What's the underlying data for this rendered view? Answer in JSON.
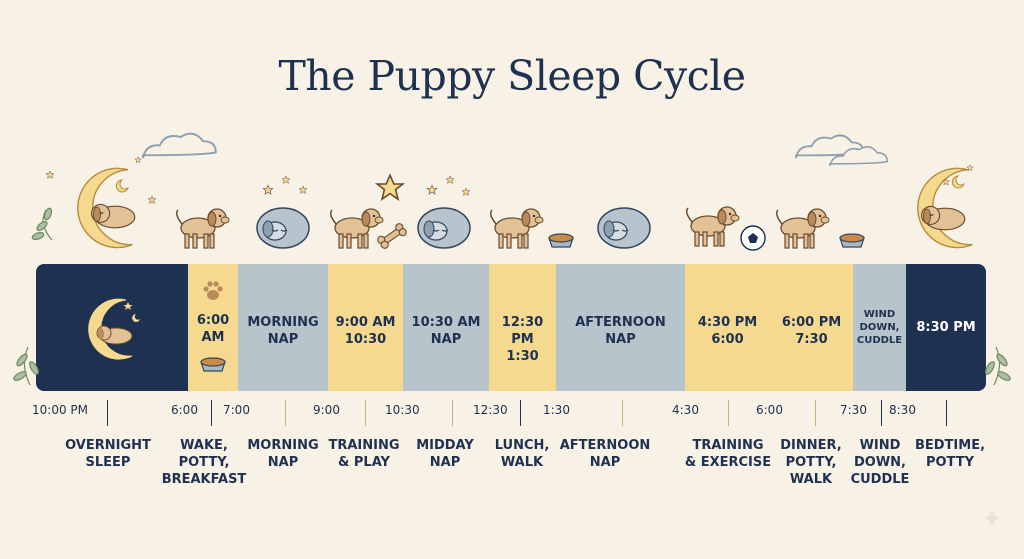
{
  "title": "The Puppy Sleep Cycle",
  "colors": {
    "navy": "#1f3150",
    "yellow": "#f4d98f",
    "blue_gray": "#b8c4cc",
    "background": "#f7f1e6"
  },
  "blocks": [
    {
      "label": "",
      "kind": "night",
      "icon": "sleeping-puppy-moon-icon"
    },
    {
      "label": "6:00\nAM",
      "kind": "awake",
      "icon": "paw-and-bowl-icon"
    },
    {
      "label": "MORNING\nNAP",
      "kind": "nap"
    },
    {
      "label": "9:00 AM\n10:30",
      "kind": "awake"
    },
    {
      "label": "10:30 AM\nNAP",
      "kind": "nap"
    },
    {
      "label": "12:30 PM\n1:30",
      "kind": "awake"
    },
    {
      "label": "AFTERNOON\nNAP",
      "kind": "nap"
    },
    {
      "label": "4:30 PM\n6:00",
      "kind": "awake"
    },
    {
      "label": "6:00 PM\n7:30",
      "kind": "awake"
    },
    {
      "label": "WIND\nDOWN,\nCUDDLE",
      "kind": "nap"
    },
    {
      "label": "8:30 PM",
      "kind": "night"
    }
  ],
  "times": [
    "10:00 PM",
    "6:00",
    "7:00",
    "9:00",
    "10:30",
    "12:30",
    "1:30",
    "4:30",
    "6:00",
    "7:30",
    "8:30"
  ],
  "activities": [
    "OVERNIGHT\nSLEEP",
    "WAKE,\nPOTTY,\nBREAKFAST",
    "MORNING\nNAP",
    "TRAINING\n& PLAY",
    "MIDDAY\nNAP",
    "LUNCH,\nWALK",
    "AFTERNOON\nNAP",
    "TRAINING\n& EXERCISE",
    "DINNER,\nPOTTY,\nWALK",
    "WIND\nDOWN,\nCUDDLE",
    "BEDTIME,\nPOTTY"
  ],
  "icons": [
    "moon-puppy-icon",
    "cloud-icon",
    "star-icon",
    "standing-puppy-icon",
    "sleeping-puppy-icon",
    "playing-puppy-icon",
    "bone-icon",
    "food-bowl-icon",
    "soccer-ball-icon",
    "leaf-icon",
    "sparkle-icon"
  ]
}
